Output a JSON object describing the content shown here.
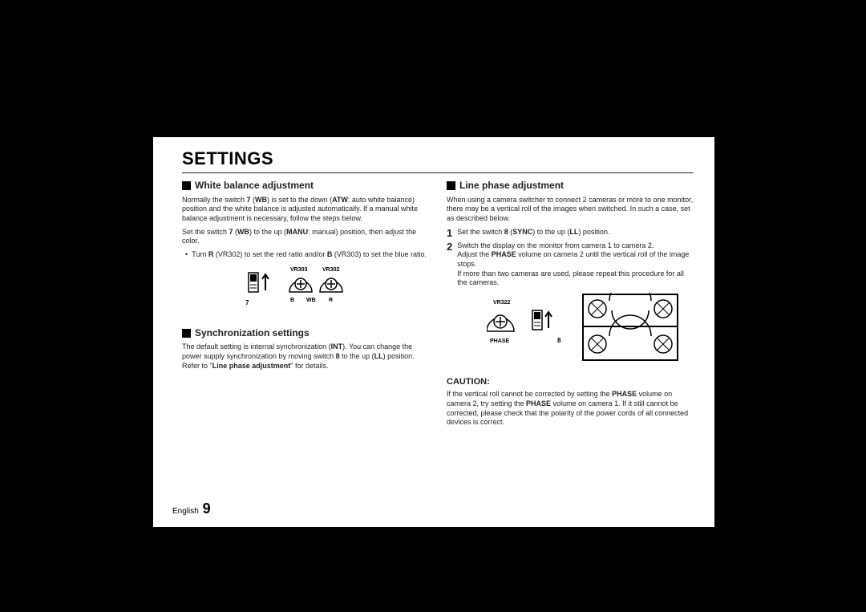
{
  "title": "SETTINGS",
  "left": {
    "wb": {
      "title": "White balance adjustment",
      "p1": "Normally the switch <b>7</b> (<b>WB</b>) is set to the down (<b>ATW</b>: auto white balance) position and the white balance is adjusted automatically. If a manual white balance adjustment is necessary, follow the steps below.",
      "p2": "Set the switch <b>7</b> (<b>WB</b>) to the up (<b>MANU</b>: manual) position, then adjust the color.",
      "bullet": "Turn <b>R</b> (VR302) to set the red ratio and/or <b>B</b> (VR303) to set the blue ratio.",
      "labels": {
        "vr303": "VR303",
        "vr302": "VR302",
        "b": "B",
        "wb": "WB",
        "r": "R",
        "seven": "7"
      }
    },
    "sync": {
      "title": "Synchronization settings",
      "p1": "The default setting is internal synchronization (<b>INT</b>). You can change the power supply synchronization by moving switch <b>8</b> to the up (<b>LL</b>) position. Refer to \"<b>Line phase adjustment</b>\" for details."
    }
  },
  "right": {
    "lp": {
      "title": "Line phase adjustment",
      "p1": "When using a camera switcher to connect 2 cameras or more to one monitor, there may be a vertical roll of the images when switched. In such a case, set as described below.",
      "s1": "Set the switch <b>8</b> (<b>SYNC</b>) to the up (<b>LL</b>) position.",
      "s2a": "Switch the display on the monitor from camera 1 to camera 2.",
      "s2b": "Adjust the <b>PHASE</b> volume on camera 2 until the vertical roll of the image stops.",
      "s2c": "If more than two cameras are used, please repeat this procedure for all the cameras.",
      "labels": {
        "vr322": "VR322",
        "phase": "PHASE",
        "eight": "8"
      }
    },
    "caution": {
      "title": "CAUTION:",
      "p1": "If the vertical roll cannot be corrected by setting the <b>PHASE</b> volume on camera 2, try setting the <b>PHASE</b> volume on camera 1. If it still cannot be corrected, please check that the polarity of the power cords of all connected devices is correct."
    }
  },
  "footer": {
    "lang": "English",
    "page": "9"
  }
}
